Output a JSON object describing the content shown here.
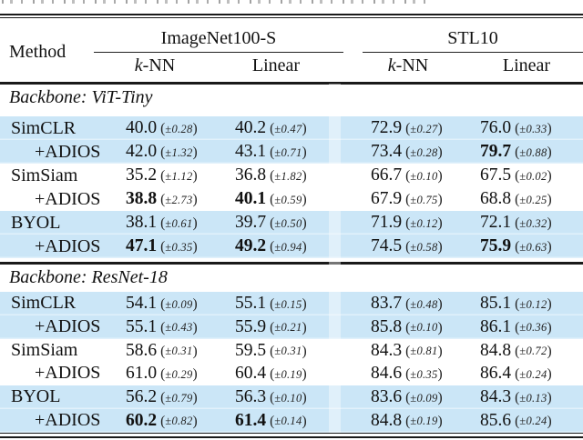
{
  "table": {
    "colors": {
      "highlight": "#cbe6f7",
      "rule": "#1a1a1a",
      "text": "#111111"
    },
    "header": {
      "method_label": "Method",
      "groups": [
        {
          "label": "ImageNet100-S",
          "columns": [
            "k-NN",
            "Linear"
          ]
        },
        {
          "label": "STL10",
          "columns": [
            "k-NN",
            "Linear"
          ]
        }
      ]
    },
    "sections": [
      {
        "title": "Backbone: ViT-Tiny",
        "rows": [
          {
            "method": "SimCLR",
            "indent": false,
            "highlight": true,
            "cells": [
              {
                "v": "40.0",
                "e": "(±0.28)",
                "b": false
              },
              {
                "v": "40.2",
                "e": "(±0.47)",
                "b": false
              },
              {
                "v": "72.9",
                "e": "(±0.27)",
                "b": false
              },
              {
                "v": "76.0",
                "e": "(±0.33)",
                "b": false
              }
            ]
          },
          {
            "method": "+ADIOS",
            "indent": true,
            "highlight": true,
            "cells": [
              {
                "v": "42.0",
                "e": "(±1.32)",
                "b": false
              },
              {
                "v": "43.1",
                "e": "(±0.71)",
                "b": false
              },
              {
                "v": "73.4",
                "e": "(±0.28)",
                "b": false
              },
              {
                "v": "79.7",
                "e": "(±0.88)",
                "b": true
              }
            ]
          },
          {
            "method": "SimSiam",
            "indent": false,
            "highlight": false,
            "cells": [
              {
                "v": "35.2",
                "e": "(±1.12)",
                "b": false
              },
              {
                "v": "36.8",
                "e": "(±1.82)",
                "b": false
              },
              {
                "v": "66.7",
                "e": "(±0.10)",
                "b": false
              },
              {
                "v": "67.5",
                "e": "(±0.02)",
                "b": false
              }
            ]
          },
          {
            "method": "+ADIOS",
            "indent": true,
            "highlight": false,
            "cells": [
              {
                "v": "38.8",
                "e": "(±2.73)",
                "b": true
              },
              {
                "v": "40.1",
                "e": "(±0.59)",
                "b": true
              },
              {
                "v": "67.9",
                "e": "(±0.75)",
                "b": false
              },
              {
                "v": "68.8",
                "e": "(±0.25)",
                "b": false
              }
            ]
          },
          {
            "method": "BYOL",
            "indent": false,
            "highlight": true,
            "cells": [
              {
                "v": "38.1",
                "e": "(±0.61)",
                "b": false
              },
              {
                "v": "39.7",
                "e": "(±0.50)",
                "b": false
              },
              {
                "v": "71.9",
                "e": "(±0.12)",
                "b": false
              },
              {
                "v": "72.1",
                "e": "(±0.32)",
                "b": false
              }
            ]
          },
          {
            "method": "+ADIOS",
            "indent": true,
            "highlight": true,
            "cells": [
              {
                "v": "47.1",
                "e": "(±0.35)",
                "b": true
              },
              {
                "v": "49.2",
                "e": "(±0.94)",
                "b": true
              },
              {
                "v": "74.5",
                "e": "(±0.58)",
                "b": false
              },
              {
                "v": "75.9",
                "e": "(±0.63)",
                "b": true
              }
            ]
          }
        ]
      },
      {
        "title": "Backbone: ResNet-18",
        "rows": [
          {
            "method": "SimCLR",
            "indent": false,
            "highlight": true,
            "cells": [
              {
                "v": "54.1",
                "e": "(±0.09)",
                "b": false
              },
              {
                "v": "55.1",
                "e": "(±0.15)",
                "b": false
              },
              {
                "v": "83.7",
                "e": "(±0.48)",
                "b": false
              },
              {
                "v": "85.1",
                "e": "(±0.12)",
                "b": false
              }
            ]
          },
          {
            "method": "+ADIOS",
            "indent": true,
            "highlight": true,
            "cells": [
              {
                "v": "55.1",
                "e": "(±0.43)",
                "b": false
              },
              {
                "v": "55.9",
                "e": "(±0.21)",
                "b": false
              },
              {
                "v": "85.8",
                "e": "(±0.10)",
                "b": false
              },
              {
                "v": "86.1",
                "e": "(±0.36)",
                "b": false
              }
            ]
          },
          {
            "method": "SimSiam",
            "indent": false,
            "highlight": false,
            "cells": [
              {
                "v": "58.6",
                "e": "(±0.31)",
                "b": false
              },
              {
                "v": "59.5",
                "e": "(±0.31)",
                "b": false
              },
              {
                "v": "84.3",
                "e": "(±0.81)",
                "b": false
              },
              {
                "v": "84.8",
                "e": "(±0.72)",
                "b": false
              }
            ]
          },
          {
            "method": "+ADIOS",
            "indent": true,
            "highlight": false,
            "cells": [
              {
                "v": "61.0",
                "e": "(±0.29)",
                "b": false
              },
              {
                "v": "60.4",
                "e": "(±0.19)",
                "b": false
              },
              {
                "v": "84.6",
                "e": "(±0.35)",
                "b": false
              },
              {
                "v": "86.4",
                "e": "(±0.24)",
                "b": false
              }
            ]
          },
          {
            "method": "BYOL",
            "indent": false,
            "highlight": true,
            "cells": [
              {
                "v": "56.2",
                "e": "(±0.79)",
                "b": false
              },
              {
                "v": "56.3",
                "e": "(±0.10)",
                "b": false
              },
              {
                "v": "83.6",
                "e": "(±0.09)",
                "b": false
              },
              {
                "v": "84.3",
                "e": "(±0.13)",
                "b": false
              }
            ]
          },
          {
            "method": "+ADIOS",
            "indent": true,
            "highlight": true,
            "cells": [
              {
                "v": "60.2",
                "e": "(±0.82)",
                "b": true
              },
              {
                "v": "61.4",
                "e": "(±0.14)",
                "b": true
              },
              {
                "v": "84.8",
                "e": "(±0.19)",
                "b": false
              },
              {
                "v": "85.6",
                "e": "(±0.24)",
                "b": false
              }
            ]
          }
        ]
      }
    ]
  }
}
